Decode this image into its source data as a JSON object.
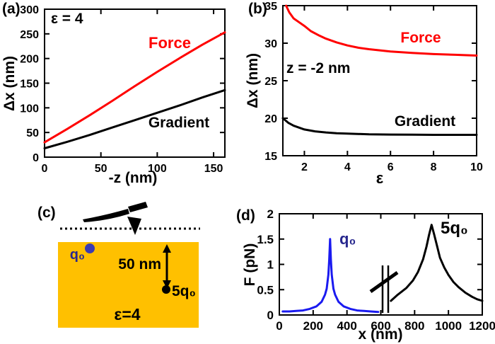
{
  "figure": {
    "background": "#ffffff",
    "panels": {
      "a": {
        "label": "(a)"
      },
      "b": {
        "label": "(b)"
      },
      "c": {
        "label": "(c)"
      },
      "d": {
        "label": "(d)"
      }
    }
  },
  "colors": {
    "force": "#ff0000",
    "gradient": "#000000",
    "axis": "#000000",
    "sample_orange": "#ffc000",
    "charge_blue": "#3b3bb2",
    "label_navy": "#28288e",
    "curve_blue": "#1a1af0"
  },
  "chart_data": [
    {
      "id": "a",
      "type": "line",
      "annotation": "ε = 4",
      "xlabel": "-z  (nm)",
      "ylabel": "Δx (nm)",
      "xlim": [
        0,
        160
      ],
      "ylim": [
        0,
        300
      ],
      "xticks": [
        0,
        50,
        100,
        150
      ],
      "yticks": [
        0,
        50,
        100,
        150,
        200,
        250,
        300
      ],
      "grid": false,
      "series": [
        {
          "name": "Force",
          "color_key": "force",
          "x": [
            0,
            20,
            40,
            60,
            80,
            100,
            120,
            140,
            160
          ],
          "y": [
            30,
            57,
            85,
            114,
            144,
            173,
            201,
            228,
            253
          ]
        },
        {
          "name": "Gradient",
          "color_key": "gradient",
          "x": [
            0,
            20,
            40,
            60,
            80,
            100,
            120,
            140,
            160
          ],
          "y": [
            18,
            31,
            45,
            60,
            75,
            90,
            105,
            121,
            136
          ]
        }
      ]
    },
    {
      "id": "b",
      "type": "line",
      "annotation": "z = -2 nm",
      "xlabel": "ε",
      "ylabel": "Δx (nm)",
      "xlim": [
        1,
        10
      ],
      "ylim": [
        15,
        35
      ],
      "xticks": [
        2,
        4,
        6,
        8,
        10
      ],
      "yticks": [
        15,
        20,
        25,
        30,
        35
      ],
      "grid": false,
      "series": [
        {
          "name": "Force",
          "color_key": "force",
          "x": [
            1.15,
            1.3,
            1.5,
            1.75,
            2,
            2.3,
            2.7,
            3,
            3.5,
            4,
            4.5,
            5,
            6,
            7,
            8,
            9,
            10
          ],
          "y": [
            35,
            34.1,
            33.3,
            32.8,
            32.3,
            31.6,
            31.0,
            30.6,
            30.1,
            29.7,
            29.4,
            29.2,
            28.9,
            28.7,
            28.55,
            28.45,
            28.35
          ]
        },
        {
          "name": "Gradient",
          "color_key": "gradient",
          "x": [
            1,
            1.25,
            1.5,
            2,
            2.5,
            3,
            3.5,
            4,
            5,
            6,
            7,
            8,
            9,
            10
          ],
          "y": [
            20,
            19.4,
            19.0,
            18.5,
            18.25,
            18.1,
            18.0,
            17.95,
            17.85,
            17.82,
            17.8,
            17.78,
            17.78,
            17.78
          ]
        }
      ]
    },
    {
      "id": "d",
      "type": "line",
      "annotation": "",
      "xlabel": "x (nm)",
      "ylabel": "F (pN)",
      "xlim": [
        0,
        1200
      ],
      "ylim": [
        0,
        2
      ],
      "xticks": [
        0,
        200,
        400,
        600,
        800,
        1000,
        1200
      ],
      "yticks": [
        0,
        0.5,
        1,
        1.5,
        2
      ],
      "grid": false,
      "axis_break_x": 620,
      "series": [
        {
          "name": "q₀",
          "color_key": "curve_blue",
          "x": [
            20,
            60,
            100,
            140,
            180,
            220,
            250,
            270,
            280,
            290,
            295,
            300,
            305,
            310,
            320,
            330,
            350,
            380,
            420,
            460,
            500,
            540,
            585
          ],
          "y": [
            0.07,
            0.07,
            0.08,
            0.09,
            0.12,
            0.17,
            0.26,
            0.4,
            0.52,
            0.8,
            1.1,
            1.5,
            1.1,
            0.8,
            0.52,
            0.4,
            0.26,
            0.17,
            0.12,
            0.09,
            0.08,
            0.07,
            0.06
          ]
        },
        {
          "name": "5q₀",
          "color_key": "gradient",
          "x": [
            660,
            700,
            750,
            790,
            820,
            850,
            870,
            885,
            900,
            915,
            930,
            950,
            975,
            1000,
            1030,
            1060,
            1100,
            1140,
            1170,
            1200
          ],
          "y": [
            0.28,
            0.4,
            0.53,
            0.68,
            0.85,
            1.1,
            1.35,
            1.58,
            1.78,
            1.6,
            1.4,
            1.13,
            0.94,
            0.79,
            0.65,
            0.55,
            0.44,
            0.36,
            0.31,
            0.28
          ]
        }
      ]
    }
  ],
  "diagram_c": {
    "sample_color": "#ffc000",
    "labels": {
      "q0": "q₀",
      "distance": "50 nm",
      "q5": "5q₀",
      "epsilon": "ε=4"
    }
  }
}
